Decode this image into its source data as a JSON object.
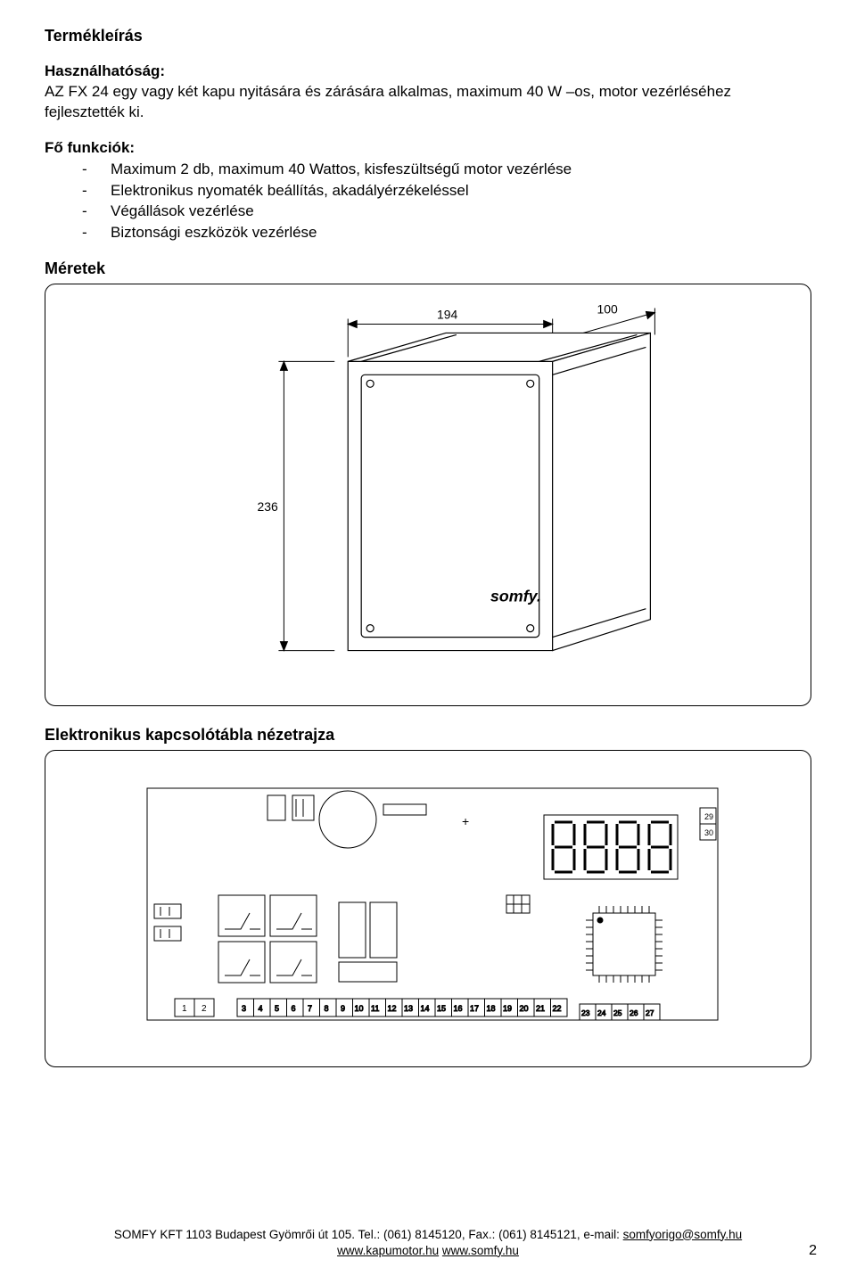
{
  "headings": {
    "product_desc": "Termékleírás",
    "usability": "Használhatóság:",
    "main_funcs": "Fő funkciók:",
    "dimensions": "Méretek",
    "pcb_view": "Elektronikus kapcsolótábla nézetrajza"
  },
  "usability_text": "AZ FX 24 egy vagy két kapu nyitására és zárására alkalmas, maximum 40 W –os,  motor vezérléséhez fejlesztették ki.",
  "bullets": [
    "Maximum 2 db, maximum 40 Wattos, kisfeszültségű motor vezérlése",
    "Elektronikus nyomaték beállítás, akadályérzékeléssel",
    "Végállások vezérlése",
    "Biztonsági eszközök vezérlése"
  ],
  "figure1": {
    "type": "dimension-drawing",
    "width_label": "194",
    "depth_label": "100",
    "height_label": "236",
    "logo_text": "somfy.",
    "line_color": "#000000",
    "fill_color": "#ffffff",
    "stroke_width": 1.2,
    "font_size": 14
  },
  "figure2": {
    "type": "pcb-layout",
    "display_digit": "8",
    "terminals_left": [
      "1",
      "2"
    ],
    "terminals_mid": [
      "3",
      "4",
      "5",
      "6",
      "7",
      "8",
      "9",
      "10",
      "11",
      "12",
      "13",
      "14",
      "15",
      "16",
      "17",
      "18",
      "19",
      "20",
      "21",
      "22"
    ],
    "terminals_right": [
      "23",
      "24",
      "25",
      "26",
      "27"
    ],
    "terminals_side": [
      "29",
      "30"
    ],
    "line_color": "#000000",
    "fill_color": "#ffffff",
    "stroke_width": 1,
    "font_size": 9
  },
  "footer": {
    "line1_pre": "SOMFY KFT 1103 Budapest Gyömrői út 105. Tel.: (061) 8145120, Fax.: (061) 8145121, e-mail: ",
    "email": "somfyorigo@somfy.hu",
    "line2_a": "www.kapumotor.hu",
    "line2_b": "www.somfy.hu"
  },
  "page_number": "2",
  "colors": {
    "text": "#000000",
    "background": "#ffffff",
    "border": "#000000"
  }
}
